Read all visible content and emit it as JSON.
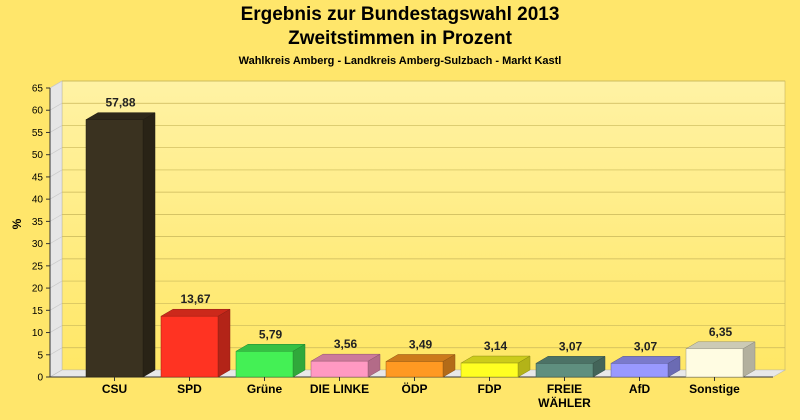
{
  "chart_data": {
    "type": "bar",
    "title": "Ergebnis zur Bundestagswahl 2013",
    "title2": "Zweitstimmen in Prozent",
    "subtitle": "Wahlkreis Amberg - Landkreis Amberg-Sulzbach - Markt Kastl",
    "ylabel": "%",
    "ylim": [
      0,
      65
    ],
    "yticks": [
      0,
      5,
      10,
      15,
      20,
      25,
      30,
      35,
      40,
      45,
      50,
      55,
      60,
      65
    ],
    "grid": true,
    "categories": [
      "CSU",
      "SPD",
      "Grüne",
      "DIE LINKE",
      "ÖDP",
      "FDP",
      "FREIE WÄHLER",
      "AfD",
      "Sonstige"
    ],
    "category_lines": [
      [
        "CSU"
      ],
      [
        "SPD"
      ],
      [
        "Grüne"
      ],
      [
        "DIE LINKE"
      ],
      [
        "ÖDP"
      ],
      [
        "FDP"
      ],
      [
        "FREIE",
        "WÄHLER"
      ],
      [
        "AfD"
      ],
      [
        "Sonstige"
      ]
    ],
    "values": [
      57.88,
      13.67,
      5.79,
      3.56,
      3.49,
      3.14,
      3.07,
      3.07,
      6.35
    ],
    "value_labels": [
      "57,88",
      "13,67",
      "5,79",
      "3,56",
      "3,49",
      "3,14",
      "3,07",
      "3,07",
      "6,35"
    ],
    "colors": [
      "#3A3220",
      "#FF3322",
      "#44F055",
      "#FF99C2",
      "#FF9922",
      "#FFFF22",
      "#5F8F7F",
      "#9999FF",
      "#FFFCE2"
    ]
  }
}
